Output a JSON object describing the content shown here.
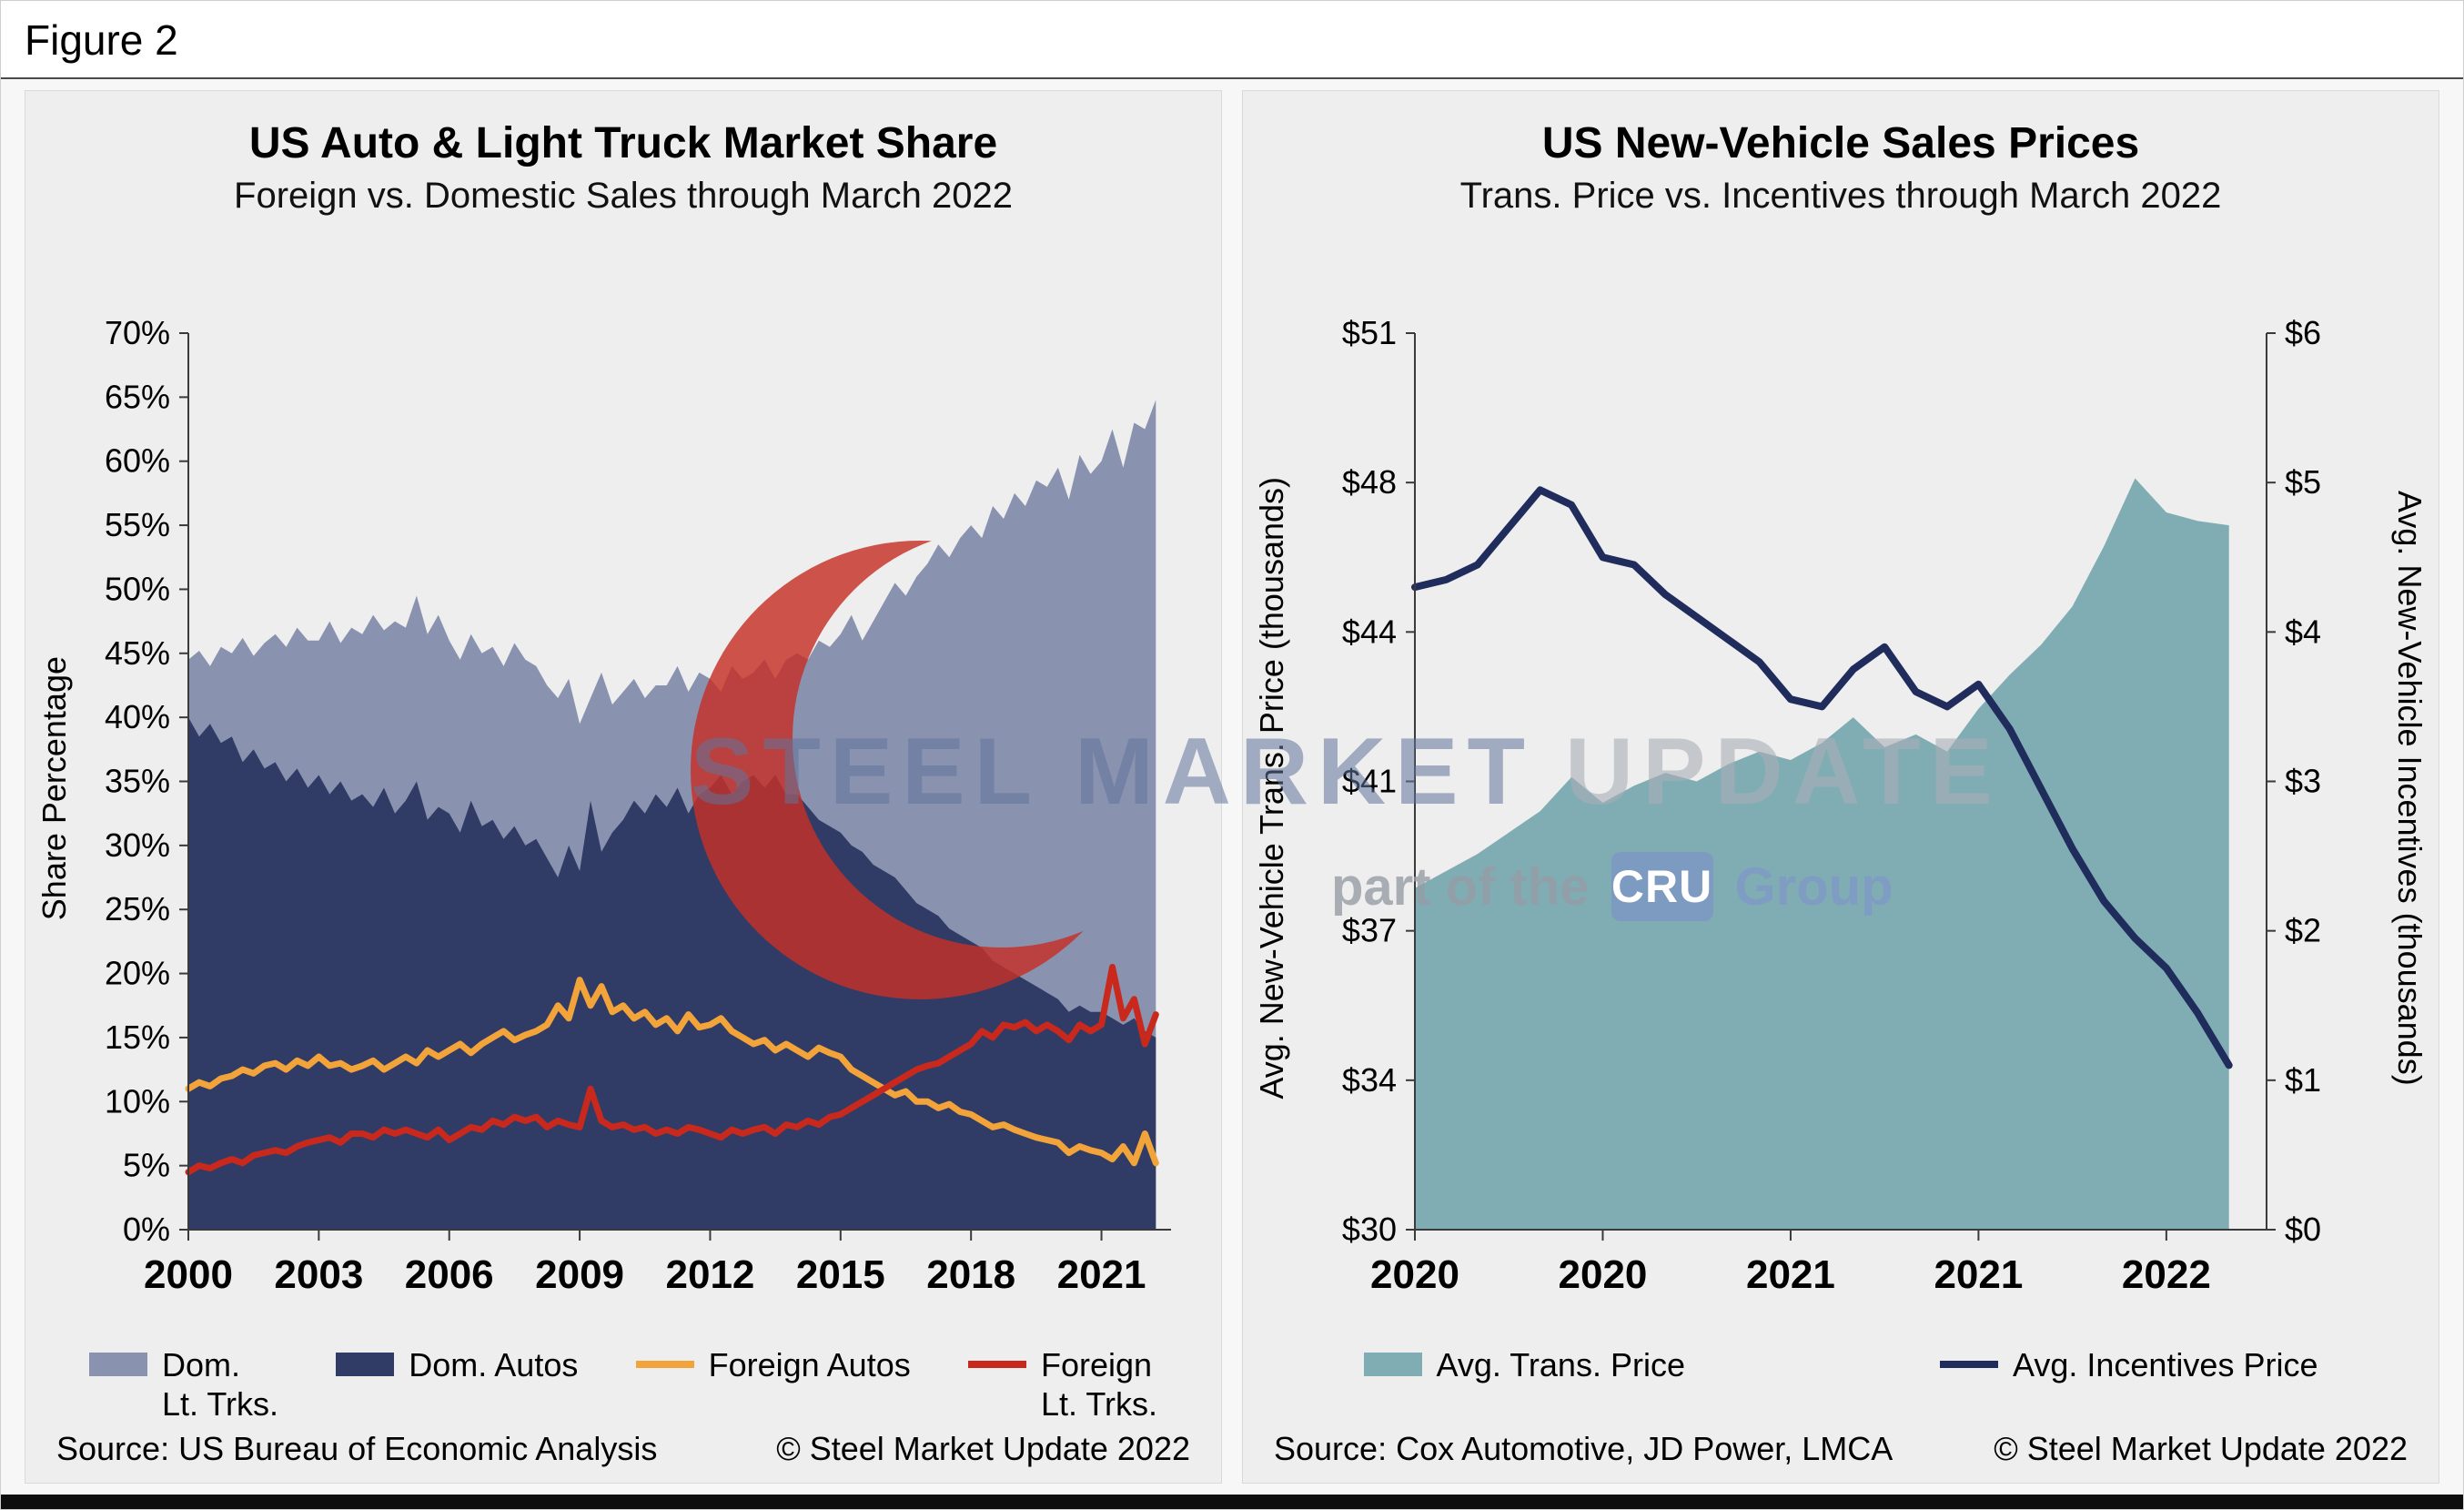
{
  "figure_label": "Figure 2",
  "watermark": {
    "line1_a": "STEEL MARKET",
    "line1_b": "UPDATE",
    "line2_a": "part of the",
    "cru": "CRU",
    "line2_b": "Group"
  },
  "chart_data": [
    {
      "type": "area",
      "title": "US Auto & Light Truck Market Share",
      "subtitle": "Foreign vs. Domestic Sales through March 2022",
      "source": "Source: US Bureau of Economic Analysis",
      "copyright": "© Steel Market Update 2022",
      "grid": false,
      "legend_position": "bottom",
      "x": {
        "start": 2000,
        "step": 0.25
      },
      "xlim": [
        2000,
        2022.6
      ],
      "xticks": {
        "values": [
          2000,
          2003,
          2006,
          2009,
          2012,
          2015,
          2018,
          2021
        ],
        "labels": [
          "2000",
          "2003",
          "2006",
          "2009",
          "2012",
          "2015",
          "2018",
          "2021"
        ]
      },
      "axis_left": {
        "title": "Share Percentage",
        "lim": [
          0,
          70
        ],
        "ticks": [
          0,
          5,
          10,
          15,
          20,
          25,
          30,
          35,
          40,
          45,
          50,
          55,
          60,
          65,
          70
        ],
        "tick_labels": [
          "0%",
          "5%",
          "10%",
          "15%",
          "20%",
          "25%",
          "30%",
          "35%",
          "40%",
          "45%",
          "50%",
          "55%",
          "60%",
          "65%",
          "70%"
        ]
      },
      "series": [
        {
          "name": "Dom. Lt. Trks.",
          "kind": "area",
          "axis": "left",
          "color": "#8992af",
          "values": [
            44.5,
            45.2,
            44.0,
            45.5,
            45.0,
            46.2,
            44.8,
            45.8,
            46.5,
            45.5,
            47.0,
            46.0,
            46.0,
            47.5,
            45.8,
            47.0,
            46.5,
            48.0,
            46.8,
            47.5,
            47.0,
            49.5,
            46.5,
            48.0,
            46.0,
            44.5,
            46.5,
            45.0,
            45.5,
            44.0,
            45.8,
            44.5,
            44.0,
            42.5,
            41.5,
            43.0,
            39.5,
            41.5,
            43.5,
            41.0,
            42.0,
            43.0,
            41.5,
            42.5,
            42.5,
            44.0,
            42.0,
            43.5,
            43.0,
            42.0,
            44.0,
            43.0,
            43.5,
            44.5,
            43.0,
            44.5,
            45.0,
            44.5,
            46.0,
            45.5,
            46.5,
            48.0,
            46.0,
            47.5,
            49.0,
            50.5,
            49.5,
            51.0,
            52.0,
            53.5,
            52.5,
            54.0,
            55.0,
            54.0,
            56.5,
            55.5,
            57.5,
            56.5,
            58.5,
            58.0,
            59.5,
            57.0,
            60.5,
            59.0,
            60.0,
            62.5,
            59.5,
            63.0,
            62.5,
            64.8
          ]
        },
        {
          "name": "Dom. Autos",
          "kind": "area",
          "axis": "left",
          "color": "#303c66",
          "values": [
            40.0,
            38.5,
            39.5,
            38.0,
            38.5,
            36.5,
            37.5,
            36.0,
            36.5,
            35.0,
            36.0,
            34.5,
            35.5,
            34.0,
            35.0,
            33.5,
            34.0,
            33.0,
            34.5,
            32.5,
            33.5,
            35.0,
            32.0,
            33.0,
            32.5,
            31.0,
            33.5,
            31.5,
            32.0,
            30.5,
            31.5,
            30.0,
            30.5,
            29.0,
            27.5,
            30.0,
            28.0,
            33.5,
            29.5,
            31.0,
            32.0,
            33.5,
            32.5,
            34.0,
            33.0,
            34.5,
            32.5,
            34.0,
            34.5,
            35.5,
            34.0,
            35.0,
            35.5,
            34.5,
            35.5,
            34.0,
            34.0,
            33.0,
            32.0,
            31.5,
            31.0,
            30.0,
            29.5,
            28.5,
            28.0,
            27.5,
            26.5,
            25.5,
            25.0,
            24.5,
            23.5,
            23.0,
            22.5,
            22.0,
            21.0,
            20.5,
            20.0,
            19.5,
            19.0,
            18.5,
            18.0,
            17.0,
            17.5,
            17.0,
            17.0,
            16.5,
            16.0,
            16.5,
            15.5,
            15.0
          ]
        },
        {
          "name": "Foreign Autos",
          "kind": "line",
          "axis": "left",
          "color": "#f2a33a",
          "values": [
            11.0,
            11.5,
            11.2,
            11.8,
            12.0,
            12.5,
            12.2,
            12.8,
            13.0,
            12.5,
            13.2,
            12.8,
            13.5,
            12.8,
            13.0,
            12.5,
            12.8,
            13.2,
            12.5,
            13.0,
            13.5,
            13.0,
            14.0,
            13.5,
            14.0,
            14.5,
            13.8,
            14.5,
            15.0,
            15.5,
            14.8,
            15.2,
            15.5,
            16.0,
            17.5,
            16.5,
            19.5,
            17.5,
            19.0,
            17.0,
            17.5,
            16.5,
            17.0,
            16.0,
            16.5,
            15.5,
            16.8,
            15.8,
            16.0,
            16.5,
            15.5,
            15.0,
            14.5,
            14.8,
            14.0,
            14.5,
            14.0,
            13.5,
            14.2,
            13.8,
            13.5,
            12.5,
            12.0,
            11.5,
            11.0,
            10.5,
            10.8,
            10.0,
            10.0,
            9.5,
            9.8,
            9.2,
            9.0,
            8.5,
            8.0,
            8.2,
            7.8,
            7.5,
            7.2,
            7.0,
            6.8,
            6.0,
            6.5,
            6.2,
            6.0,
            5.5,
            6.5,
            5.2,
            7.5,
            5.2
          ]
        },
        {
          "name": "Foreign Lt. Trks.",
          "kind": "line",
          "axis": "left",
          "color": "#c9291d",
          "values": [
            4.5,
            5.0,
            4.8,
            5.2,
            5.5,
            5.2,
            5.8,
            6.0,
            6.2,
            6.0,
            6.5,
            6.8,
            7.0,
            7.2,
            6.8,
            7.5,
            7.5,
            7.2,
            7.8,
            7.5,
            7.8,
            7.5,
            7.2,
            7.8,
            7.0,
            7.5,
            8.0,
            7.8,
            8.5,
            8.2,
            8.8,
            8.5,
            8.8,
            8.0,
            8.5,
            8.2,
            8.0,
            11.0,
            8.5,
            8.0,
            8.2,
            7.8,
            8.0,
            7.5,
            7.8,
            7.5,
            8.0,
            7.8,
            7.5,
            7.2,
            7.8,
            7.5,
            7.8,
            8.0,
            7.5,
            8.2,
            8.0,
            8.5,
            8.2,
            8.8,
            9.0,
            9.5,
            10.0,
            10.5,
            11.0,
            11.5,
            12.0,
            12.5,
            12.8,
            13.0,
            13.5,
            14.0,
            14.5,
            15.5,
            15.0,
            16.0,
            15.8,
            16.2,
            15.5,
            16.0,
            15.5,
            14.8,
            16.0,
            15.5,
            16.0,
            20.5,
            16.5,
            18.0,
            14.5,
            16.8
          ]
        }
      ],
      "legend": [
        {
          "label": "Dom.\nLt. Trks.",
          "kind": "area",
          "color": "#8992af"
        },
        {
          "label": "Dom. Autos",
          "kind": "area",
          "color": "#303c66"
        },
        {
          "label": "Foreign Autos",
          "kind": "line",
          "color": "#f2a33a"
        },
        {
          "label": "Foreign\nLt. Trks.",
          "kind": "line",
          "color": "#c9291d"
        }
      ]
    },
    {
      "type": "area+line",
      "title": "US New-Vehicle Sales Prices",
      "subtitle": "Trans. Price vs. Incentives through March 2022",
      "source": "Source: Cox Automotive, JD Power, LMCA",
      "copyright": "© Steel Market Update 2022",
      "grid": false,
      "legend_position": "bottom",
      "x": {
        "start": 0,
        "step": 1
      },
      "xlim": [
        0,
        27.2
      ],
      "xticks": {
        "values": [
          0,
          6,
          12,
          18,
          24
        ],
        "labels": [
          "2020",
          "2020",
          "2021",
          "2021",
          "2022"
        ]
      },
      "axis_left": {
        "title": "Avg. New-Vehicle Trans. Price (thousands)",
        "lim": [
          30,
          51
        ],
        "ticks": [
          30,
          33.5,
          37,
          40.5,
          44,
          47.5,
          51
        ],
        "tick_labels": [
          "$30",
          "$34",
          "$37",
          "$41",
          "$44",
          "$48",
          "$51"
        ]
      },
      "axis_right": {
        "title": "Avg. New-Vehicle Incentives (thousands)",
        "lim": [
          0,
          6
        ],
        "ticks": [
          0,
          1,
          2,
          3,
          4,
          5,
          6
        ],
        "tick_labels": [
          "$0",
          "$1",
          "$2",
          "$3",
          "$4",
          "$5",
          "$6"
        ]
      },
      "series": [
        {
          "name": "Avg. Trans. Price",
          "kind": "area",
          "axis": "left",
          "color": "#7fadb3",
          "values": [
            38.0,
            38.4,
            38.8,
            39.3,
            39.8,
            40.6,
            40.0,
            40.4,
            40.7,
            40.5,
            40.9,
            41.2,
            41.0,
            41.4,
            42.0,
            41.3,
            41.6,
            41.2,
            42.2,
            43.0,
            43.7,
            44.6,
            46.0,
            47.6,
            46.8,
            46.6,
            46.5
          ]
        },
        {
          "name": "Avg. Incentives Price",
          "kind": "line",
          "axis": "right",
          "color": "#1f2c5c",
          "values": [
            4.3,
            4.35,
            4.45,
            4.7,
            4.95,
            4.85,
            4.5,
            4.45,
            4.25,
            4.1,
            3.95,
            3.8,
            3.55,
            3.5,
            3.75,
            3.9,
            3.6,
            3.5,
            3.65,
            3.35,
            2.95,
            2.55,
            2.2,
            1.95,
            1.75,
            1.45,
            1.1
          ]
        }
      ],
      "legend": [
        {
          "label": "Avg. Trans. Price",
          "kind": "area",
          "color": "#7fadb3"
        },
        {
          "label": "Avg. Incentives Price",
          "kind": "line",
          "color": "#1f2c5c"
        }
      ]
    }
  ]
}
